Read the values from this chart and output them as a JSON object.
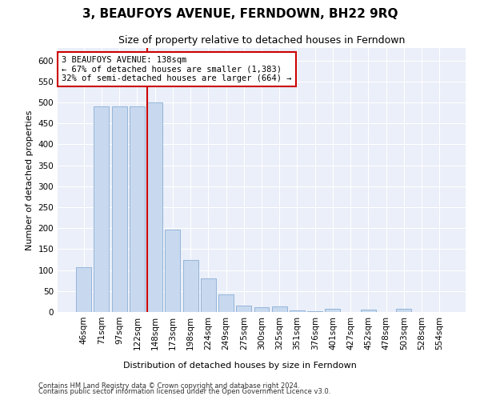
{
  "title": "3, BEAUFOYS AVENUE, FERNDOWN, BH22 9RQ",
  "subtitle": "Size of property relative to detached houses in Ferndown",
  "xlabel": "Distribution of detached houses by size in Ferndown",
  "ylabel": "Number of detached properties",
  "categories": [
    "46sqm",
    "71sqm",
    "97sqm",
    "122sqm",
    "148sqm",
    "173sqm",
    "198sqm",
    "224sqm",
    "249sqm",
    "275sqm",
    "300sqm",
    "325sqm",
    "351sqm",
    "376sqm",
    "401sqm",
    "427sqm",
    "452sqm",
    "478sqm",
    "503sqm",
    "528sqm",
    "554sqm"
  ],
  "values": [
    107,
    490,
    490,
    490,
    500,
    197,
    125,
    80,
    42,
    15,
    12,
    13,
    4,
    1,
    7,
    0,
    5,
    0,
    7,
    0,
    0
  ],
  "bar_color": "#c8d9ef",
  "bar_edge_color": "#8aadd4",
  "property_line_color": "#cc0000",
  "property_line_index": 4,
  "annotation_text": "3 BEAUFOYS AVENUE: 138sqm\n← 67% of detached houses are smaller (1,383)\n32% of semi-detached houses are larger (664) →",
  "annotation_box_edgecolor": "#cc0000",
  "annotation_facecolor": "#ffffff",
  "ylim": [
    0,
    630
  ],
  "yticks": [
    0,
    50,
    100,
    150,
    200,
    250,
    300,
    350,
    400,
    450,
    500,
    550,
    600
  ],
  "footnote1": "Contains HM Land Registry data © Crown copyright and database right 2024.",
  "footnote2": "Contains public sector information licensed under the Open Government Licence v3.0.",
  "background_color": "#ffffff",
  "plot_bg_color": "#eaeff9",
  "grid_color": "#ffffff",
  "title_fontsize": 11,
  "subtitle_fontsize": 9,
  "axis_label_fontsize": 8,
  "tick_fontsize": 7.5,
  "annotation_fontsize": 7.5,
  "footnote_fontsize": 6
}
